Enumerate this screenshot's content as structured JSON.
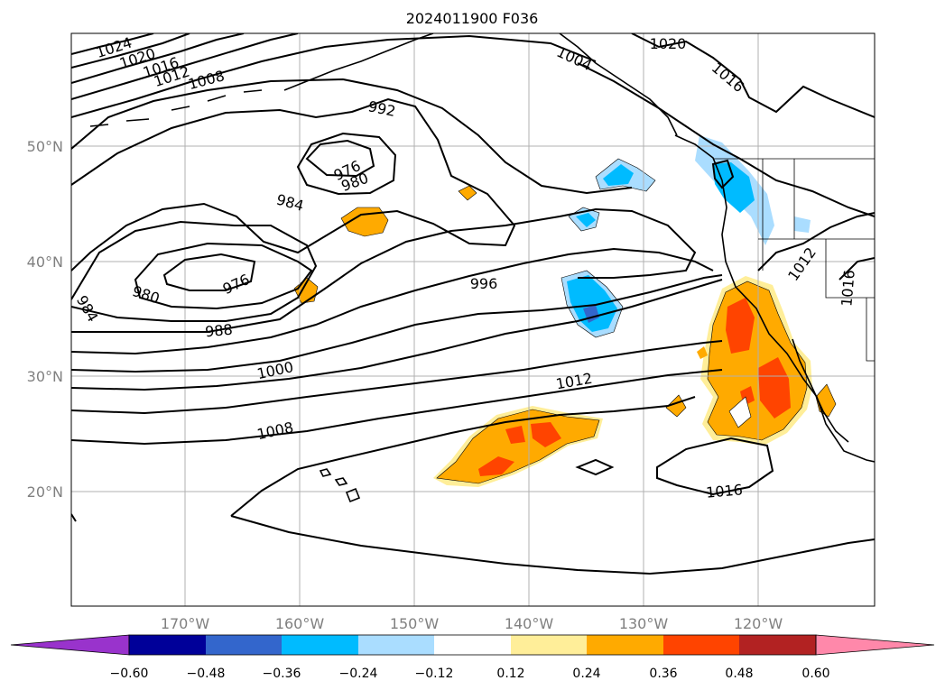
{
  "title": "2024011900 F036",
  "lat_labels": [
    "50°N",
    "40°N",
    "30°N",
    "20°N"
  ],
  "lon_labels": [
    "170°W",
    "160°W",
    "150°W",
    "140°W",
    "130°W",
    "120°W"
  ],
  "colorbar": {
    "ticks": [
      "−0.60",
      "−0.48",
      "−0.36",
      "−0.24",
      "−0.12",
      "0.12",
      "0.24",
      "0.36",
      "0.48",
      "0.60"
    ],
    "colors": [
      "#9933cc",
      "#000099",
      "#3366cc",
      "#00bbff",
      "#aaddff",
      "#ffffff",
      "#ffee99",
      "#ffaa00",
      "#ff4400",
      "#b22222",
      "#ff88aa"
    ]
  },
  "contour_labels": [
    "1024",
    "1020",
    "1016",
    "1012",
    "1008",
    "992",
    "976",
    "980",
    "984",
    "976",
    "980",
    "984",
    "988",
    "1000",
    "1008",
    "996",
    "1012",
    "1016",
    "1020",
    "1016",
    "1012",
    "1016",
    "1004"
  ],
  "fill_colors": {
    "light_blue": "#aaddff",
    "blue": "#00bbff",
    "royal": "#3366cc",
    "light_yellow": "#ffee99",
    "orange": "#ffaa00",
    "red_orange": "#ff4400"
  }
}
